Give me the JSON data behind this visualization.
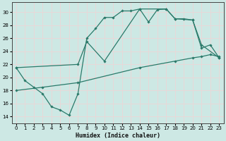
{
  "xlabel": "Humidex (Indice chaleur)",
  "xlim": [
    -0.5,
    23.5
  ],
  "ylim": [
    13,
    31.5
  ],
  "yticks": [
    14,
    16,
    18,
    20,
    22,
    24,
    26,
    28,
    30
  ],
  "xticks": [
    0,
    1,
    2,
    3,
    4,
    5,
    6,
    7,
    8,
    9,
    10,
    11,
    12,
    13,
    14,
    15,
    16,
    17,
    18,
    19,
    20,
    21,
    22,
    23
  ],
  "bg_color": "#cde8e4",
  "line_color": "#2a7a6a",
  "grid_color": "#e8d8d8",
  "line1_x": [
    0,
    1,
    2,
    3,
    4,
    5,
    6,
    7,
    8,
    9,
    10,
    11,
    12,
    13,
    14,
    15,
    16,
    17,
    18,
    19,
    20,
    21,
    22,
    23
  ],
  "line1_y": [
    21.5,
    19.5,
    18.5,
    17.5,
    15.5,
    15.0,
    14.2,
    17.5,
    26.0,
    27.5,
    29.2,
    29.2,
    30.2,
    30.2,
    30.5,
    28.5,
    30.4,
    30.5,
    29.0,
    29.0,
    28.8,
    24.5,
    25.0,
    23.0
  ],
  "line2_x": [
    0,
    7,
    8,
    10,
    14,
    17,
    18,
    20,
    21,
    23
  ],
  "line2_y": [
    21.5,
    22.0,
    25.5,
    22.5,
    30.5,
    30.5,
    29.0,
    28.8,
    25.0,
    23.0
  ],
  "line3_x": [
    0,
    3,
    7,
    14,
    18,
    20,
    21,
    22,
    23
  ],
  "line3_y": [
    18.0,
    18.5,
    19.2,
    21.5,
    22.5,
    23.0,
    23.2,
    23.5,
    23.2
  ]
}
